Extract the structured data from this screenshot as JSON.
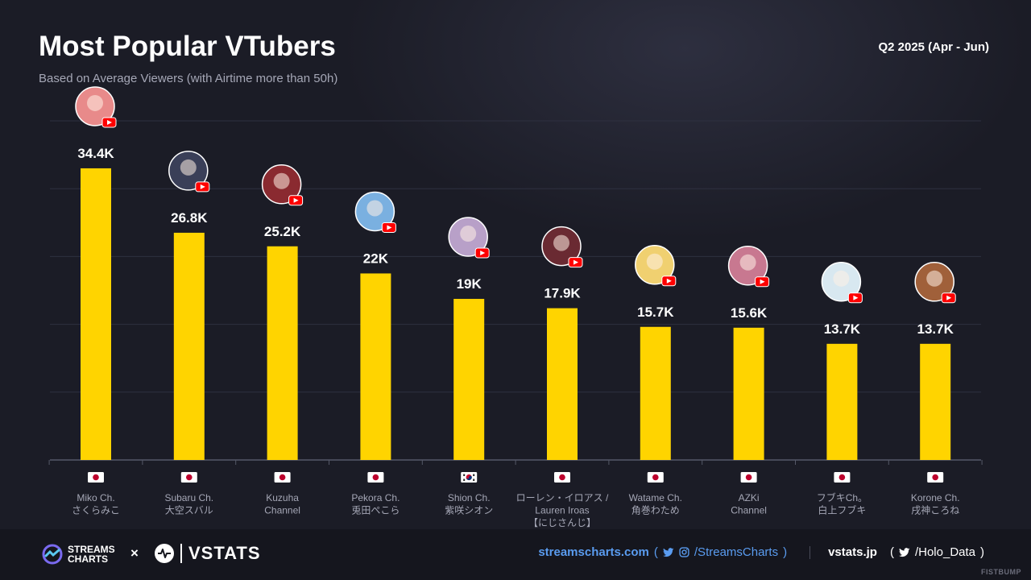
{
  "header": {
    "title": "Most Popular VTubers",
    "subtitle": "Based on Average Viewers (with Airtime more than 50h)",
    "period": "Q2 2025 (Apr - Jun)"
  },
  "chart_data": {
    "type": "bar",
    "categories": [
      [
        "Miko Ch.",
        "さくらみこ"
      ],
      [
        "Subaru Ch.",
        "大空スバル"
      ],
      [
        "Kuzuha",
        "Channel"
      ],
      [
        "Pekora Ch.",
        "兎田ぺこら"
      ],
      [
        "Shion Ch.",
        "紫咲シオン"
      ],
      [
        "ローレン・イロアス /",
        "Lauren Iroas",
        "【にじさんじ】"
      ],
      [
        "Watame Ch.",
        "角巻わため"
      ],
      [
        "AZKi",
        "Channel"
      ],
      [
        "フブキCh。",
        "白上フブキ"
      ],
      [
        "Korone Ch.",
        "戌神ころね"
      ]
    ],
    "values": [
      34.4,
      26.8,
      25.2,
      22,
      19,
      17.9,
      15.7,
      15.6,
      13.7,
      13.7
    ],
    "value_labels": [
      "34.4K",
      "26.8K",
      "25.2K",
      "22K",
      "19K",
      "17.9K",
      "15.7K",
      "15.6K",
      "13.7K",
      "13.7K"
    ],
    "countries": [
      "JP",
      "JP",
      "JP",
      "JP",
      "KR",
      "JP",
      "JP",
      "JP",
      "JP",
      "JP"
    ],
    "platform_icon": "youtube-icon",
    "avatar_colors": [
      "#e88a8a",
      "#3a3f58",
      "#8a2a30",
      "#7ab0e0",
      "#b8a0c8",
      "#6a2a32",
      "#f0d070",
      "#c87890",
      "#d8e8f0",
      "#a0603a"
    ],
    "ylim": [
      0,
      40
    ],
    "grid": true,
    "bar_color": "#ffd400",
    "title": "Most Popular VTubers",
    "subtitle": "Based on Average Viewers (with Airtime more than 50h)"
  },
  "footer": {
    "brand_sc_line1": "STREAMS",
    "brand_sc_line2": "CHARTS",
    "times": "×",
    "brand_vs": "VSTATS",
    "sc_url": "streamscharts.com",
    "sc_handle": "/StreamsCharts",
    "vs_url": "vstats.jp",
    "vs_handle": "/Holo_Data",
    "paren_open": "(",
    "paren_close": ")",
    "credit": "FISTBUMP"
  }
}
